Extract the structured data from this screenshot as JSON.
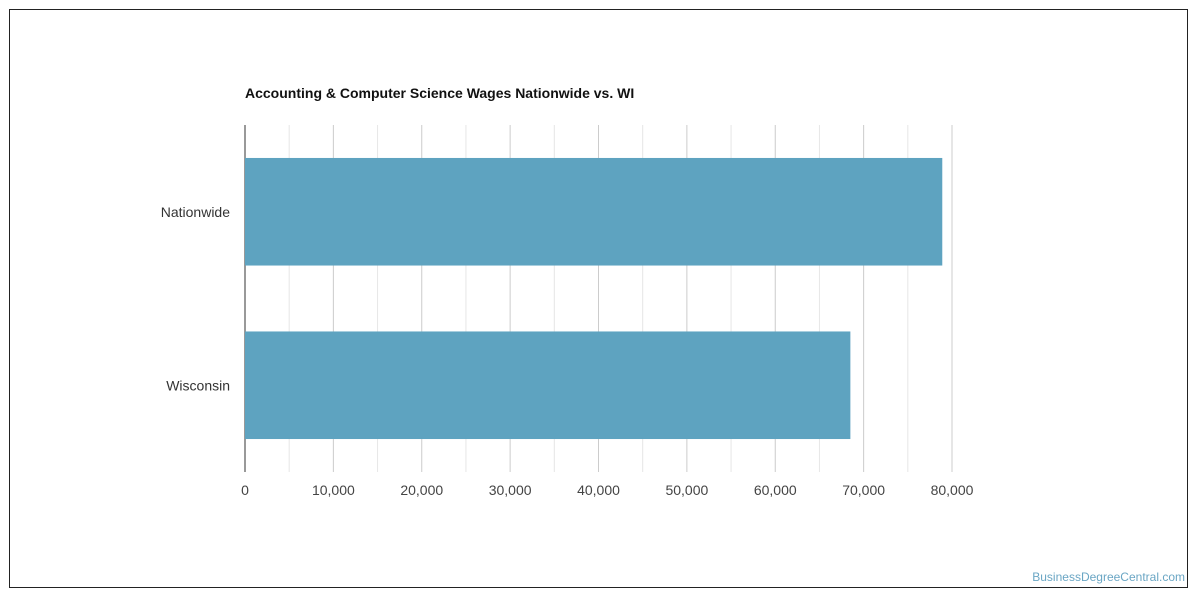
{
  "chart_data": {
    "type": "bar",
    "orientation": "horizontal",
    "title": "Accounting & Computer Science Wages Nationwide vs. WI",
    "categories": [
      "Nationwide",
      "Wisconsin"
    ],
    "values": [
      78900,
      68500
    ],
    "xlim": [
      0,
      80000
    ],
    "x_ticks": [
      "0",
      "10,000",
      "20,000",
      "30,000",
      "40,000",
      "50,000",
      "60,000",
      "70,000",
      "80,000"
    ],
    "xlabel": "",
    "ylabel": "",
    "grid": true,
    "bar_color": "#5ea3c0"
  },
  "watermark": "BusinessDegreeCentral.com"
}
